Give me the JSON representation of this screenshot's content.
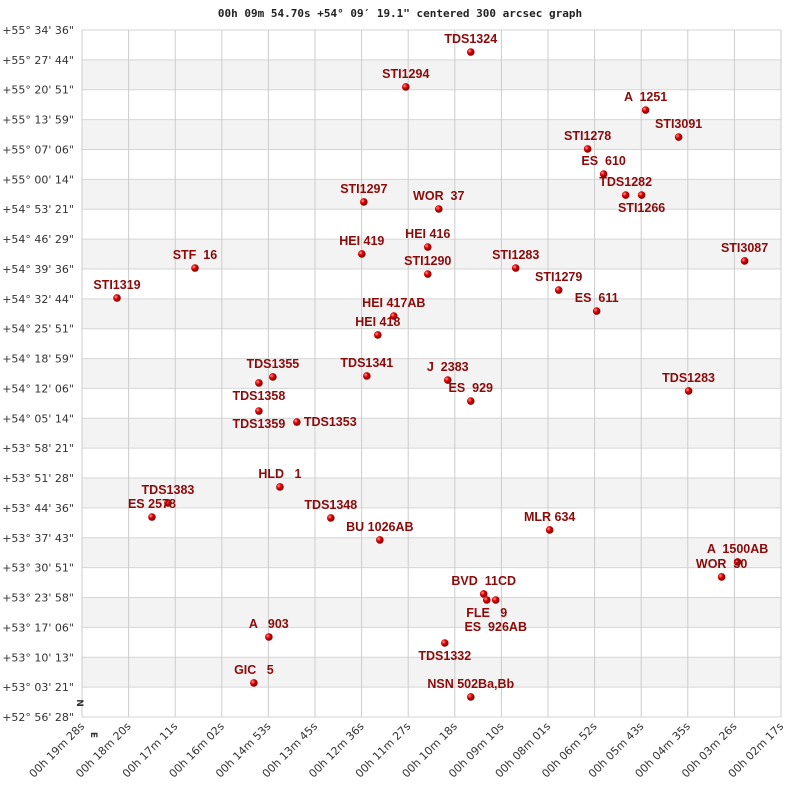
{
  "chart_data": {
    "type": "scatter",
    "title": "00h 09m 54.70s +54° 09′ 19.1\" centered 300 arcsec graph",
    "x_ticks": [
      "00h 19m 28s",
      "00h 18m 20s",
      "00h 17m 11s",
      "00h 16m 02s",
      "00h 14m 53s",
      "00h 13m 45s",
      "00h 12m 36s",
      "00h 11m 27s",
      "00h 10m 18s",
      "00h 09m 10s",
      "00h 08m 01s",
      "00h 06m 52s",
      "00h 05m 43s",
      "00h 04m 35s",
      "00h 03m 26s",
      "00h 02m 17s"
    ],
    "y_ticks": [
      "+55° 34' 36\"",
      "+55° 27' 44\"",
      "+55° 20' 51\"",
      "+55° 13' 59\"",
      "+55° 07' 06\"",
      "+55° 00' 14\"",
      "+54° 53' 21\"",
      "+54° 46' 29\"",
      "+54° 39' 36\"",
      "+54° 32' 44\"",
      "+54° 25' 51\"",
      "+54° 18' 59\"",
      "+54° 12' 06\"",
      "+54° 05' 14\"",
      "+53° 58' 21\"",
      "+53° 51' 28\"",
      "+53° 44' 36\"",
      "+53° 37' 43\"",
      "+53° 30' 51\"",
      "+53° 23' 58\"",
      "+53° 17' 06\"",
      "+53° 10' 13\"",
      "+53° 03' 21\"",
      "+52° 56' 28\""
    ],
    "x_range": [
      "00h 19m 28s",
      "00h 02m 17s"
    ],
    "y_range": [
      "+55° 34' 36\"",
      "+52° 56' 28\""
    ],
    "x_direction": "decreasing to the right",
    "grid": true,
    "alternating_row_bands": true,
    "orientation_marks": {
      "north": "N",
      "east": "E"
    },
    "marker_color": "#e00000",
    "label_color": "#8b0a0a",
    "points": [
      {
        "name": "TDS1324",
        "ra": "00h 09m 54.6s",
        "dec": "+55° 29' 32\""
      },
      {
        "name": "STI1294",
        "ra": "00h 11m 30.4s",
        "dec": "+55° 21' 29\""
      },
      {
        "name": "A  1251",
        "ra": "00h 05m 36.7s",
        "dec": "+55° 16' 11\""
      },
      {
        "name": "STI3091",
        "ra": "00h 04m 48.0s",
        "dec": "+55° 09' 58\""
      },
      {
        "name": "STI1278",
        "ra": "00h 07m 02.2s",
        "dec": "+55° 07' 13\""
      },
      {
        "name": "ES  610",
        "ra": "00h 06m 38.6s",
        "dec": "+55° 01' 27\""
      },
      {
        "name": "TDS1282",
        "ra": "00h 06m 06.1s",
        "dec": "+54° 56' 37\""
      },
      {
        "name": "STI1266",
        "ra": "00h 05m 42.6s",
        "dec": "+54° 56' 37\""
      },
      {
        "name": "STI1297",
        "ra": "00h 12m 32.3s",
        "dec": "+54° 55' 01\""
      },
      {
        "name": "WOR  37",
        "ra": "00h 10m 41.8s",
        "dec": "+54° 53' 24\""
      },
      {
        "name": "HEI 416",
        "ra": "00h 10m 58.0s",
        "dec": "+54° 44' 39\""
      },
      {
        "name": "HEI 419",
        "ra": "00h 12m 35.3s",
        "dec": "+54° 43' 03\""
      },
      {
        "name": "STF  16",
        "ra": "00h 16m 41.4s",
        "dec": "+54° 39' 49\""
      },
      {
        "name": "STI3087",
        "ra": "00h 03m 10.7s",
        "dec": "+54° 41' 26\""
      },
      {
        "name": "STI1290",
        "ra": "00h 10m 58.0s",
        "dec": "+54° 38' 26\""
      },
      {
        "name": "STI1283",
        "ra": "00h 08m 48.3s",
        "dec": "+54° 39' 49\""
      },
      {
        "name": "STI1279",
        "ra": "00h 07m 44.9s",
        "dec": "+54° 34' 45\""
      },
      {
        "name": "STI1319",
        "ra": "00h 18m 36.4s",
        "dec": "+54° 32' 55\""
      },
      {
        "name": "ES  611",
        "ra": "00h 06m 48.9s",
        "dec": "+54° 29' 55\""
      },
      {
        "name": "HEI 417AB",
        "ra": "00h 11m 48.1s",
        "dec": "+54° 28' 46\""
      },
      {
        "name": "HEI 418",
        "ra": "00h 12m 11.7s",
        "dec": "+54° 24' 24\""
      },
      {
        "name": "TDS1355",
        "ra": "00h 14m 46.5s",
        "dec": "+54° 14' 44\""
      },
      {
        "name": "TDS1358",
        "ra": "00h 15m 07.1s",
        "dec": "+54° 13' 21\""
      },
      {
        "name": "TDS1341",
        "ra": "00h 12m 27.9s",
        "dec": "+54° 14' 58\""
      },
      {
        "name": "J  2383",
        "ra": "00h 10m 28.5s",
        "dec": "+54° 14' 02\""
      },
      {
        "name": "ES  929",
        "ra": "00h 09m 54.6s",
        "dec": "+54° 09' 12\""
      },
      {
        "name": "TDS1283",
        "ra": "00h 04m 33.3s",
        "dec": "+54° 11' 31\""
      },
      {
        "name": "TDS1359",
        "ra": "00h 15m 07.1s",
        "dec": "+54° 06' 54\""
      },
      {
        "name": "TDS1353",
        "ra": "00h 14m 11.1s",
        "dec": "+54° 04' 22\""
      },
      {
        "name": "HLD   1",
        "ra": "00h 14m 36.1s",
        "dec": "+53° 49' 25\""
      },
      {
        "name": "TDS1383",
        "ra": "00h 17m 21.2s",
        "dec": "+53° 45' 44\""
      },
      {
        "name": "ES 2578",
        "ra": "00h 17m 44.8s",
        "dec": "+53° 42' 30\""
      },
      {
        "name": "TDS1348",
        "ra": "00h 13m 21.0s",
        "dec": "+53° 42' 17\""
      },
      {
        "name": "BU 1026AB",
        "ra": "00h 12m 08.7s",
        "dec": "+53° 37' 13\""
      },
      {
        "name": "MLR 634",
        "ra": "00h 07m 58.2s",
        "dec": "+53° 39' 31\""
      },
      {
        "name": "A  1500AB",
        "ra": "00h 03m 21.0s",
        "dec": "+53° 32' 09\""
      },
      {
        "name": "WOR  30",
        "ra": "00h 03m 44.6s",
        "dec": "+53° 28' 42\""
      },
      {
        "name": "BVD  11CD",
        "ra": "00h 09m 35.5s",
        "dec": "+53° 24' 47\""
      },
      {
        "name": "FLE   9",
        "ra": "00h 09m 31.0s",
        "dec": "+53° 23' 24\""
      },
      {
        "name": "ES  926AB",
        "ra": "00h 09m 17.8s",
        "dec": "+53° 23' 24\""
      },
      {
        "name": "A   903",
        "ra": "00h 14m 52.4s",
        "dec": "+53° 14' 53\""
      },
      {
        "name": "TDS1332",
        "ra": "00h 10m 32.9s",
        "dec": "+53° 13' 30\""
      },
      {
        "name": "GIC   5",
        "ra": "00h 15m 14.5s",
        "dec": "+53° 04' 18\""
      },
      {
        "name": "NSN 502Ba,Bb",
        "ra": "00h 09m 54.6s",
        "dec": "+53° 01' 05\""
      }
    ]
  }
}
